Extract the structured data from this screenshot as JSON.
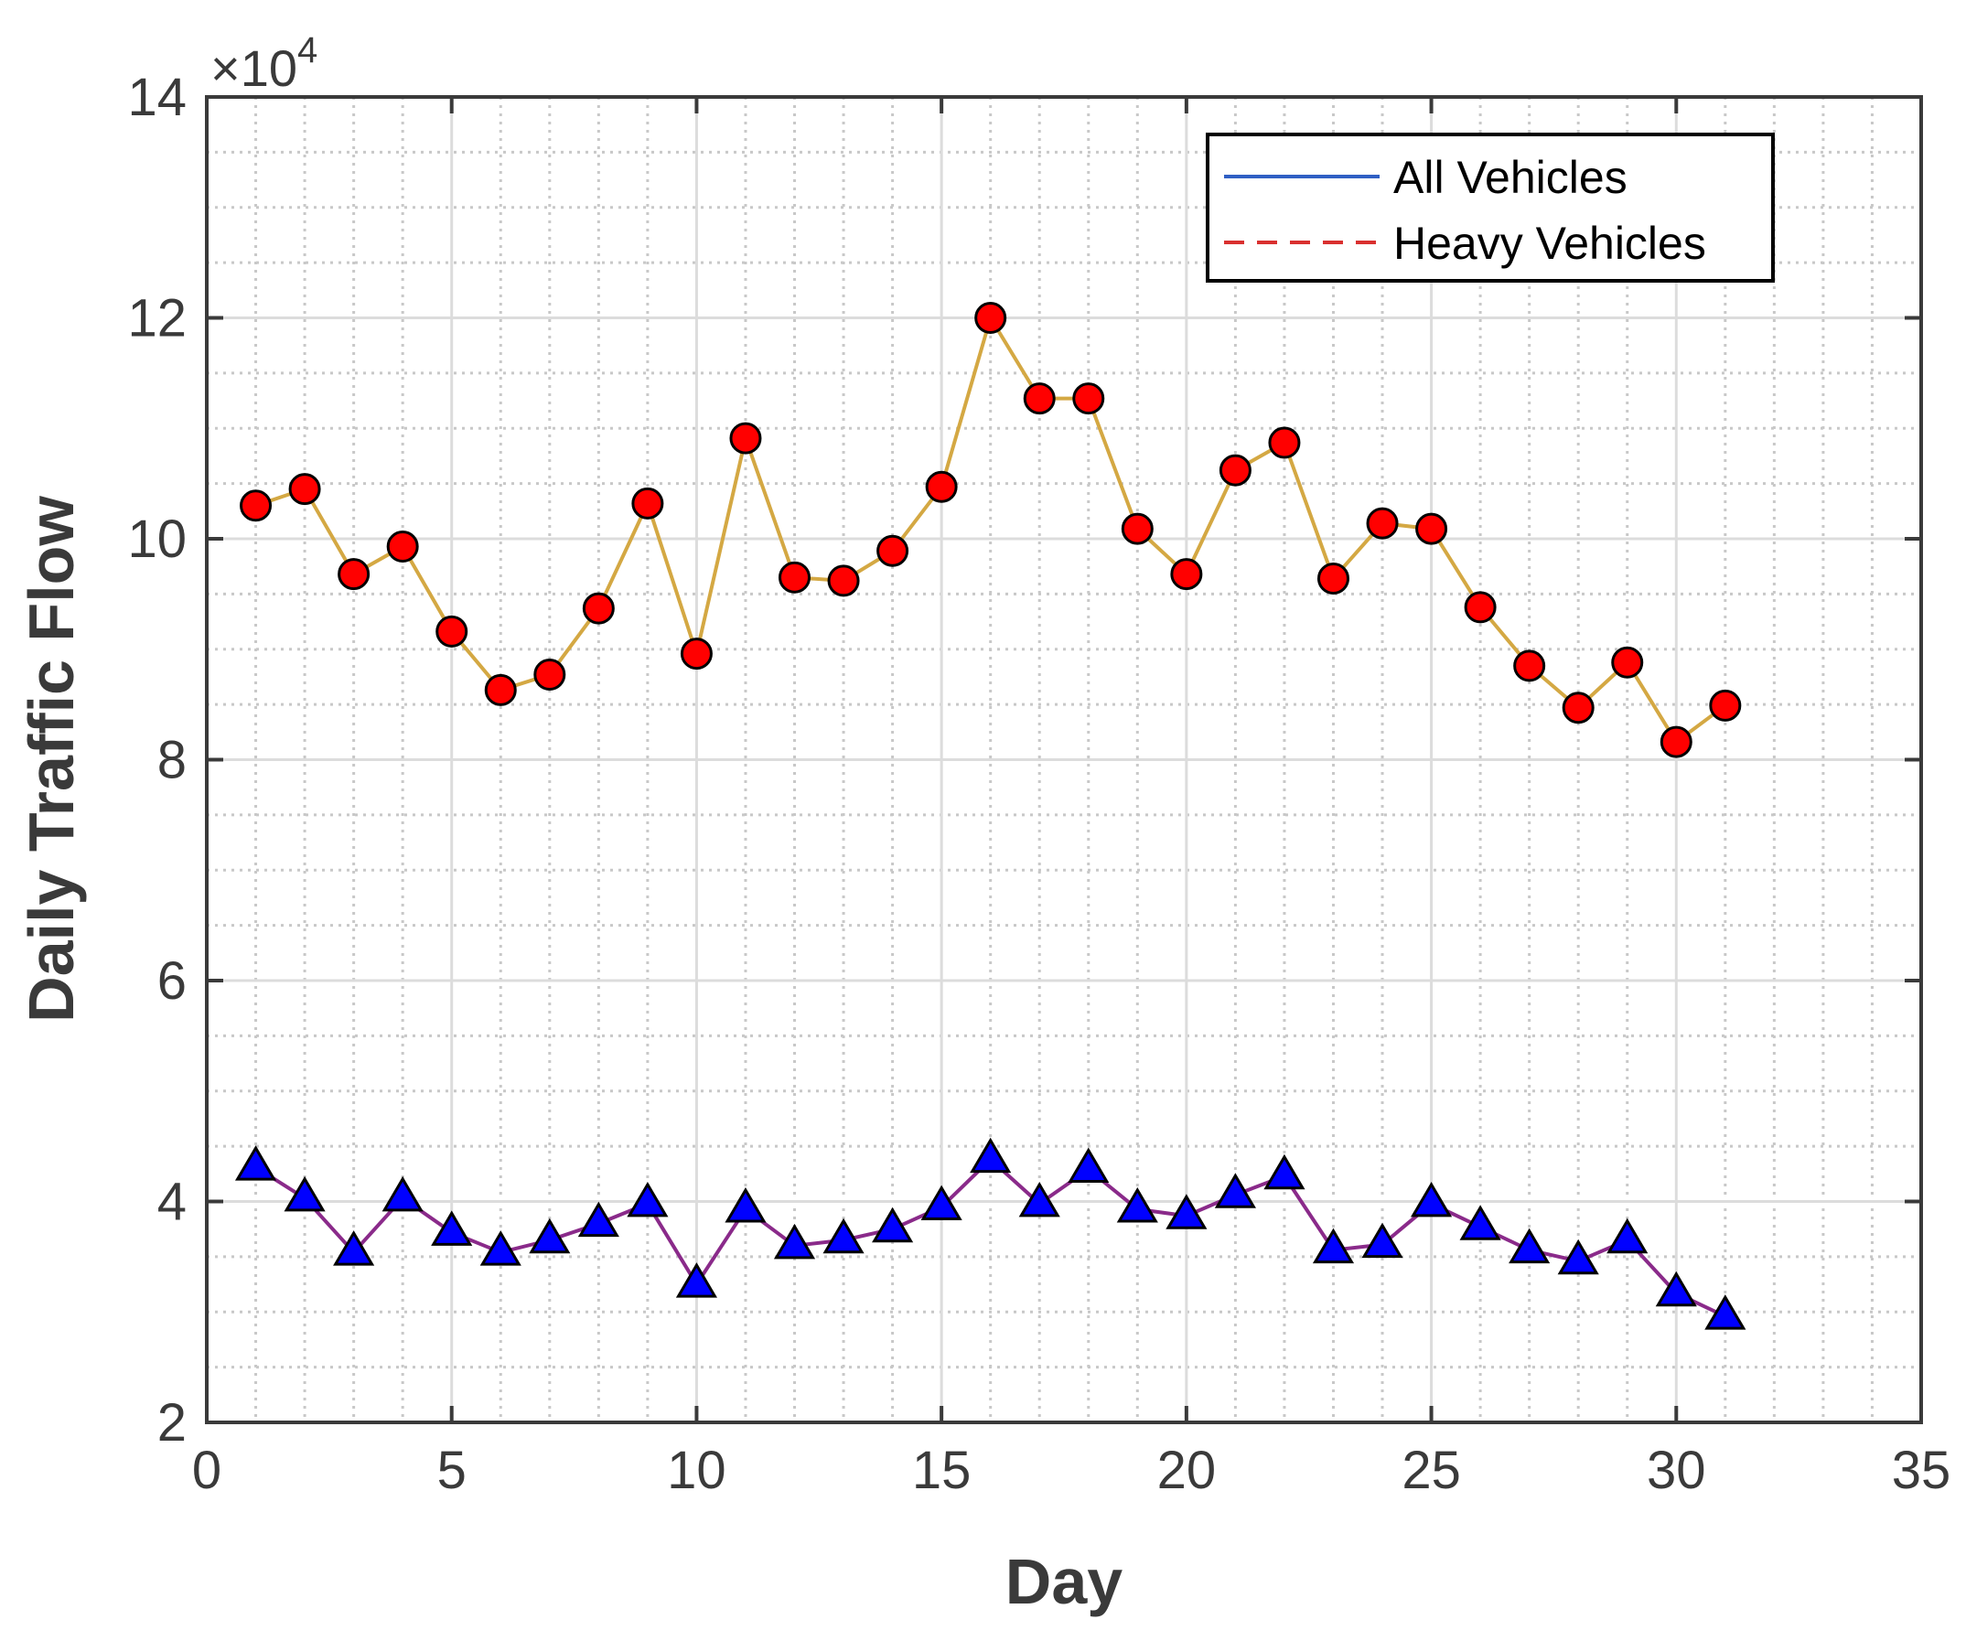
{
  "chart_data": {
    "type": "line",
    "xlabel": "Day",
    "ylabel": "Daily Traffic Flow",
    "xlim": [
      0,
      35
    ],
    "ylim": [
      20000,
      140000
    ],
    "y_multiplier_label": "×10",
    "y_multiplier_exponent": "4",
    "x_ticks": [
      0,
      5,
      10,
      15,
      20,
      25,
      30,
      35
    ],
    "x_tick_labels": [
      "0",
      "5",
      "10",
      "15",
      "20",
      "25",
      "30",
      "35"
    ],
    "y_ticks": [
      20000,
      40000,
      60000,
      80000,
      100000,
      120000,
      140000
    ],
    "y_tick_labels": [
      "2",
      "4",
      "6",
      "8",
      "10",
      "12",
      "14"
    ],
    "grid": true,
    "minor_grid": true,
    "legend_position": "top-right",
    "x": [
      1,
      2,
      3,
      4,
      5,
      6,
      7,
      8,
      9,
      10,
      11,
      12,
      13,
      14,
      15,
      16,
      17,
      18,
      19,
      20,
      21,
      22,
      23,
      24,
      25,
      26,
      27,
      28,
      29,
      30,
      31
    ],
    "series": [
      {
        "name": "All Vehicles",
        "legend_color": "#2f5fc4",
        "legend_style": "solid",
        "line_color": "#d4a843",
        "marker": "circle",
        "marker_color": "#ff0000",
        "values": [
          103000,
          104500,
          96800,
          99300,
          91600,
          86300,
          87700,
          93700,
          103200,
          89600,
          109100,
          96500,
          96200,
          98900,
          104700,
          120000,
          112700,
          112700,
          100900,
          96800,
          106200,
          108700,
          96400,
          101400,
          100900,
          93800,
          88500,
          84700,
          88800,
          81600,
          84900
        ]
      },
      {
        "name": "Heavy Vehicles",
        "legend_color": "#d9302f",
        "legend_style": "dashed",
        "line_color": "#8a2a8a",
        "marker": "triangle",
        "marker_color": "#0000ff",
        "values": [
          43100,
          40300,
          35400,
          40300,
          37200,
          35400,
          36500,
          38000,
          39800,
          32500,
          39300,
          36000,
          36500,
          37500,
          39500,
          43800,
          39800,
          42900,
          39300,
          38700,
          40600,
          42300,
          35600,
          36100,
          39800,
          37700,
          35600,
          34600,
          36500,
          31700,
          29600
        ]
      }
    ]
  }
}
